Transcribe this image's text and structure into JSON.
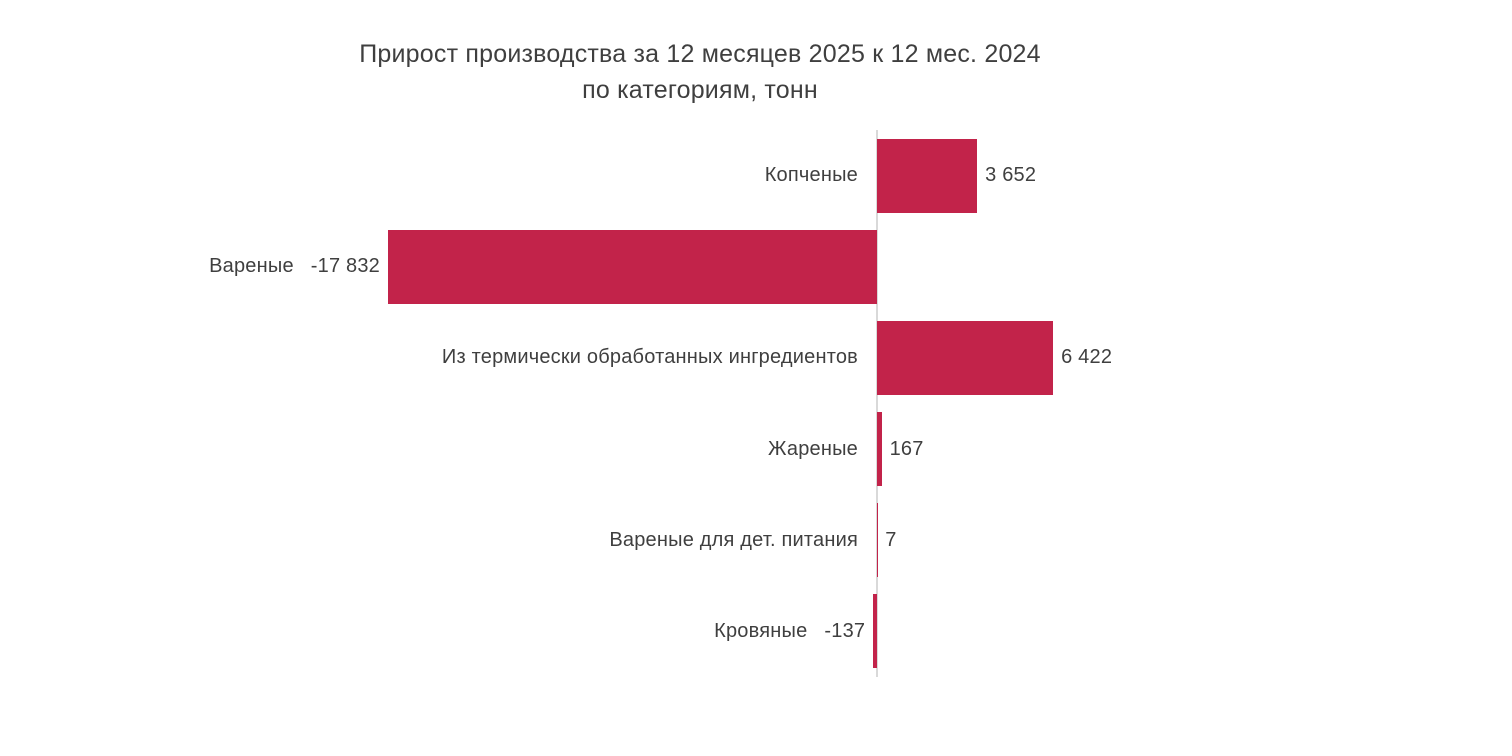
{
  "chart_data": {
    "type": "bar",
    "orientation": "horizontal",
    "title_line1": "Прирост производства за 12 месяцев 2025 к 12 мес. 2024",
    "title_line2": "по категориям, тонн",
    "categories": [
      "Копченые",
      "Вареные",
      "Из термически обработанных ингредиентов",
      "Жареные",
      "Вареные для дет. питания",
      "Кровяные"
    ],
    "values": [
      3652,
      -17832,
      6422,
      167,
      7,
      -137
    ],
    "value_labels": [
      "3 652",
      "-17 832",
      "6 422",
      "167",
      "7",
      "-137"
    ],
    "bar_color": "#c2234a",
    "text_color": "#3f3f3f",
    "axis_line_color": "#d9d9d9",
    "background_color": "#ffffff",
    "xlim": [
      -20000,
      8000
    ],
    "baseline": 0,
    "grid": false,
    "legend": false,
    "value_label_position": "outside-end",
    "category_label_position": "left-of-axis"
  }
}
